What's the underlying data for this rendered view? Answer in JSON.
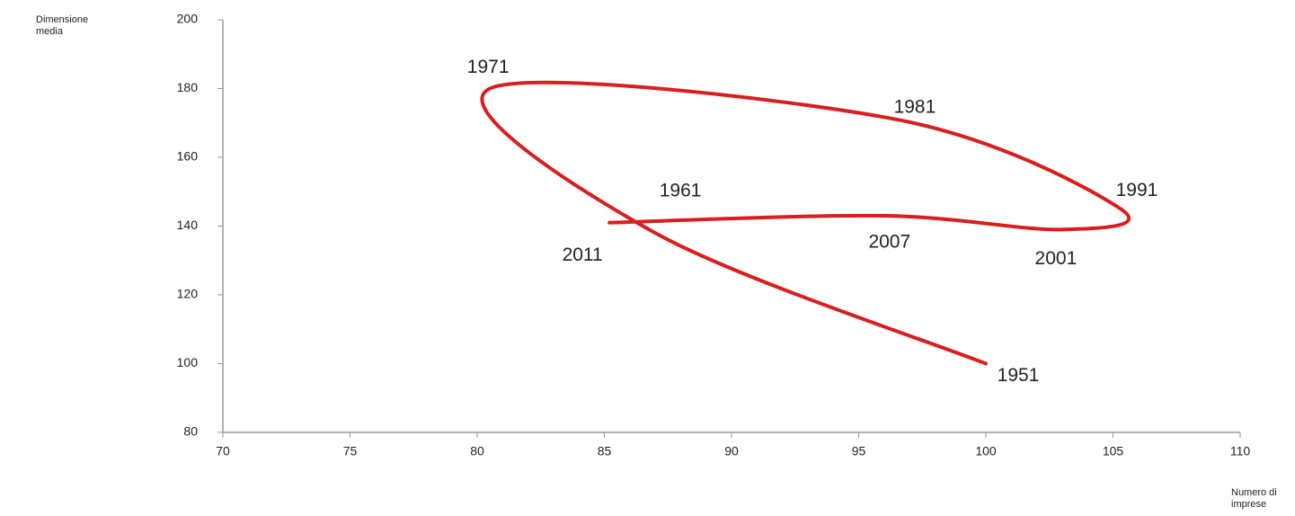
{
  "chart_data": {
    "type": "connected-scatter",
    "y_label": "Dimensione\nmedia",
    "x_label": "Numero di\nimprese",
    "labels": [
      "1951",
      "1961",
      "1971",
      "1981",
      "1991",
      "2001",
      "2007",
      "2011"
    ],
    "x": [
      100,
      87,
      80.5,
      96.5,
      105.3,
      103,
      96,
      85.2
    ],
    "y": [
      100,
      138,
      180,
      171,
      145,
      139,
      143,
      141
    ],
    "color": "#d81e1e",
    "xlim": [
      70,
      110
    ],
    "xticks": [
      70,
      75,
      80,
      85,
      90,
      95,
      100,
      105,
      110
    ],
    "ylim": [
      80,
      200
    ],
    "yticks": [
      80,
      100,
      120,
      140,
      160,
      180,
      200
    ],
    "grid": false
  }
}
